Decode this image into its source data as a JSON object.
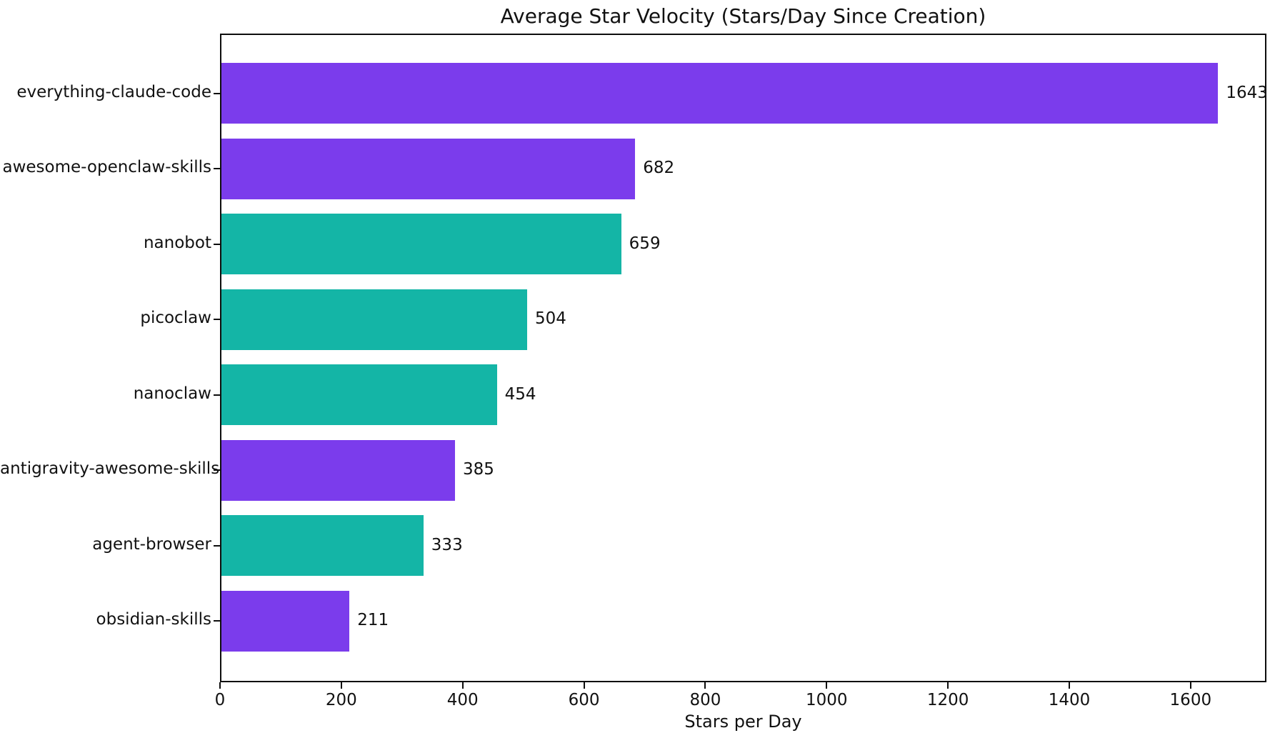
{
  "chart_data": {
    "type": "bar",
    "orientation": "horizontal",
    "title": "Average Star Velocity (Stars/Day Since Creation)",
    "xlabel": "Stars per Day",
    "ylabel": "",
    "categories": [
      "everything-claude-code",
      "awesome-openclaw-skills",
      "nanobot",
      "picoclaw",
      "nanoclaw",
      "antigravity-awesome-skills",
      "agent-browser",
      "obsidian-skills"
    ],
    "values": [
      1643,
      682,
      659,
      504,
      454,
      385,
      333,
      211
    ],
    "bar_colors": [
      "#7B3CEC",
      "#7B3CEC",
      "#14B5A6",
      "#14B5A6",
      "#14B5A6",
      "#7B3CEC",
      "#14B5A6",
      "#7B3CEC"
    ],
    "colors": {
      "purple": "#7B3CEC",
      "teal": "#14B5A6",
      "spine": "#0d0d0d",
      "background": "#ffffff",
      "text": "#111111"
    },
    "x_ticks": [
      0,
      200,
      400,
      600,
      800,
      1000,
      1200,
      1400,
      1600
    ],
    "xlim": [
      0,
      1725
    ],
    "value_labels": [
      "1643",
      "682",
      "659",
      "504",
      "454",
      "385",
      "333",
      "211"
    ],
    "grid": false,
    "legend": null
  }
}
